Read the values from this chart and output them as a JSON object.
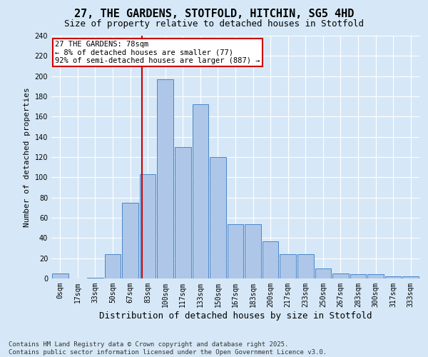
{
  "title": "27, THE GARDENS, STOTFOLD, HITCHIN, SG5 4HD",
  "subtitle": "Size of property relative to detached houses in Stotfold",
  "xlabel": "Distribution of detached houses by size in Stotfold",
  "ylabel": "Number of detached properties",
  "categories": [
    "0sqm",
    "17sqm",
    "33sqm",
    "50sqm",
    "67sqm",
    "83sqm",
    "100sqm",
    "117sqm",
    "133sqm",
    "150sqm",
    "167sqm",
    "183sqm",
    "200sqm",
    "217sqm",
    "233sqm",
    "250sqm",
    "267sqm",
    "283sqm",
    "300sqm",
    "317sqm",
    "333sqm"
  ],
  "values": [
    5,
    0,
    1,
    24,
    75,
    103,
    197,
    130,
    172,
    120,
    54,
    54,
    37,
    24,
    24,
    10,
    5,
    4,
    4,
    2,
    2
  ],
  "bar_color": "#aec6e8",
  "bar_edge_color": "#4a86c8",
  "annotation_text": "27 THE GARDENS: 78sqm\n← 8% of detached houses are smaller (77)\n92% of semi-detached houses are larger (887) →",
  "annotation_box_color": "#ffffff",
  "annotation_box_edge_color": "#cc0000",
  "vline_color": "#cc0000",
  "vline_pos": 4.68,
  "ylim": [
    0,
    240
  ],
  "yticks": [
    0,
    20,
    40,
    60,
    80,
    100,
    120,
    140,
    160,
    180,
    200,
    220,
    240
  ],
  "background_color": "#d6e8f7",
  "plot_bg_color": "#d6e8f7",
  "footer_text": "Contains HM Land Registry data © Crown copyright and database right 2025.\nContains public sector information licensed under the Open Government Licence v3.0.",
  "title_fontsize": 11,
  "subtitle_fontsize": 9,
  "xlabel_fontsize": 9,
  "ylabel_fontsize": 8,
  "tick_fontsize": 7,
  "annotation_fontsize": 7.5,
  "footer_fontsize": 6.5
}
